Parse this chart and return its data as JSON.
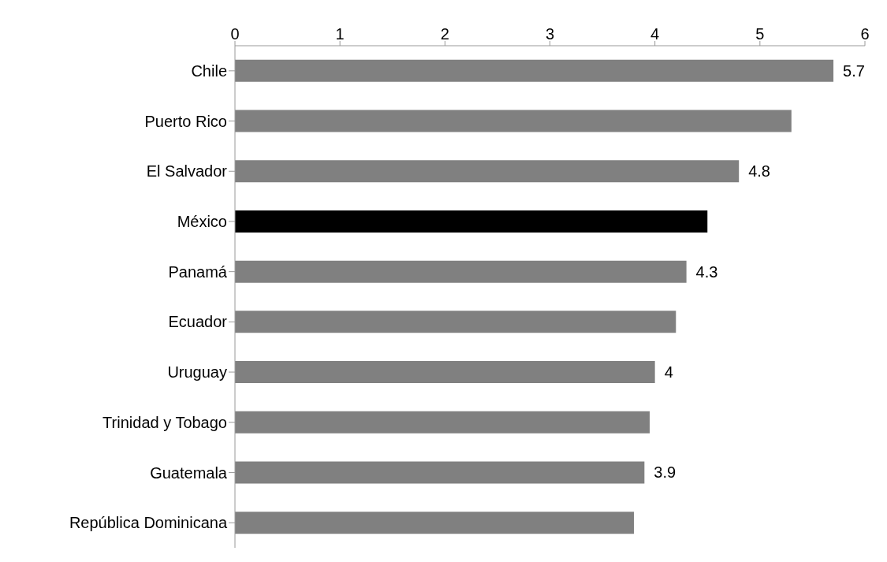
{
  "chart_data": {
    "type": "bar",
    "orientation": "horizontal",
    "categories": [
      "Chile",
      "Puerto Rico",
      "El Salvador",
      "México",
      "Panamá",
      "Ecuador",
      "Uruguay",
      "Trinidad y Tobago",
      "Guatemala",
      "República Dominicana"
    ],
    "values": [
      5.7,
      5.3,
      4.8,
      4.5,
      4.3,
      4.2,
      4,
      3.95,
      3.9,
      3.8
    ],
    "colors": [
      "#808080",
      "#808080",
      "#808080",
      "#000000",
      "#808080",
      "#808080",
      "#808080",
      "#808080",
      "#808080",
      "#808080"
    ],
    "value_labels": [
      "5.7",
      null,
      "4.8",
      null,
      "4.3",
      null,
      "4",
      null,
      "3.9",
      null
    ],
    "xlim": [
      0,
      6
    ],
    "xticks": [
      0,
      1,
      2,
      3,
      4,
      5,
      6
    ],
    "grid": false
  }
}
